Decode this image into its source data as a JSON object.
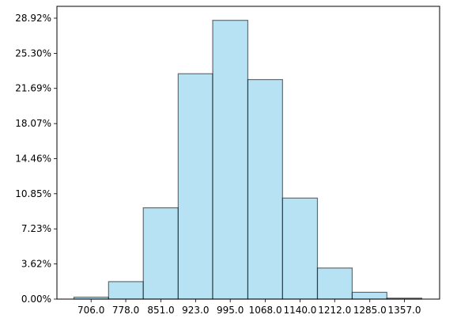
{
  "chart_data": {
    "type": "bar",
    "title": "",
    "xlabel": "",
    "ylabel": "",
    "grid": false,
    "colors": {
      "bar_fill": "#87ceeb",
      "bar_fill_opacity": 0.6,
      "bar_edge": "#000000",
      "bar_edge_opacity": 0.55,
      "axes": "#000000",
      "background": "#ffffff"
    },
    "bin_edges": [
      670.3,
      742.3,
      814.4,
      886.9,
      958.6,
      1031.6,
      1103.7,
      1176.2,
      1248.4,
      1320.5,
      1393.0
    ],
    "values": [
      0.2,
      1.8,
      9.4,
      23.2,
      28.7,
      22.6,
      10.4,
      3.2,
      0.7,
      0.1
    ],
    "xticks": [
      706.0,
      778.0,
      851.0,
      923.0,
      995.0,
      1068.0,
      1140.0,
      1212.0,
      1285.0,
      1357.0
    ],
    "xtick_labels": [
      "706.0",
      "778.0",
      "851.0",
      "923.0",
      "995.0",
      "1068.0",
      "1140.0",
      "1212.0",
      "1285.0",
      "1357.0"
    ],
    "xlim": [
      635,
      1430
    ],
    "yticks": [
      0.0,
      3.62,
      7.23,
      10.85,
      14.46,
      18.07,
      21.69,
      25.3,
      28.92
    ],
    "ytick_labels": [
      "0.00%",
      "3.62%",
      "7.23%",
      "10.85%",
      "14.46%",
      "18.07%",
      "21.69%",
      "25.30%",
      "28.92%"
    ],
    "ylim": [
      0,
      30.14
    ]
  }
}
